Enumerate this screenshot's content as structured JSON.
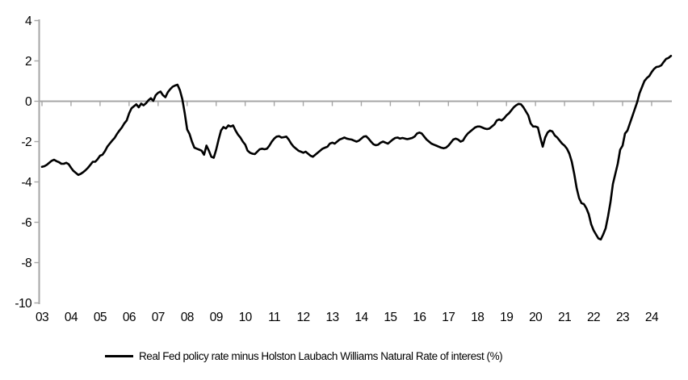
{
  "chart_data": {
    "type": "line",
    "title": "",
    "xlabel": "",
    "ylabel": "",
    "grid": "zero-line-only",
    "legend_position": "bottom",
    "axis_color": "#a6a6a6",
    "text_color": "#000000",
    "y_axis": {
      "ticks": [
        4,
        2,
        0,
        -2,
        -4,
        -6,
        -8,
        -10
      ],
      "range": [
        -10,
        4
      ]
    },
    "x_axis": {
      "tick_years": [
        2003,
        2004,
        2005,
        2006,
        2007,
        2008,
        2009,
        2010,
        2011,
        2012,
        2013,
        2014,
        2015,
        2016,
        2017,
        2018,
        2019,
        2020,
        2021,
        2022,
        2023,
        2024
      ],
      "tick_labels": [
        "03",
        "04",
        "05",
        "06",
        "07",
        "08",
        "09",
        "10",
        "11",
        "12",
        "13",
        "14",
        "15",
        "16",
        "17",
        "18",
        "19",
        "20",
        "21",
        "22",
        "23",
        "24"
      ],
      "range_years": [
        2003.0,
        2024.78
      ]
    },
    "series": [
      {
        "name": "Real Fed policy rate minus Holston Laubach Williams Natural Rate of interest (%)",
        "color": "#000000",
        "start_year": 2003,
        "frequency": "monthly",
        "values": [
          -3.25,
          -3.22,
          -3.15,
          -3.05,
          -2.95,
          -2.9,
          -2.97,
          -3.02,
          -3.1,
          -3.1,
          -3.05,
          -3.12,
          -3.3,
          -3.45,
          -3.55,
          -3.65,
          -3.6,
          -3.52,
          -3.42,
          -3.3,
          -3.15,
          -3.0,
          -3.0,
          -2.87,
          -2.7,
          -2.65,
          -2.48,
          -2.25,
          -2.1,
          -1.95,
          -1.82,
          -1.62,
          -1.45,
          -1.3,
          -1.1,
          -0.95,
          -0.6,
          -0.35,
          -0.25,
          -0.15,
          -0.3,
          -0.12,
          -0.2,
          -0.1,
          0.05,
          0.15,
          0.02,
          0.3,
          0.42,
          0.48,
          0.3,
          0.2,
          0.45,
          0.6,
          0.72,
          0.78,
          0.82,
          0.55,
          0.1,
          -0.6,
          -1.4,
          -1.62,
          -2.0,
          -2.3,
          -2.35,
          -2.4,
          -2.45,
          -2.65,
          -2.2,
          -2.45,
          -2.75,
          -2.8,
          -2.4,
          -1.9,
          -1.45,
          -1.28,
          -1.35,
          -1.2,
          -1.25,
          -1.2,
          -1.45,
          -1.65,
          -1.8,
          -2.0,
          -2.15,
          -2.45,
          -2.55,
          -2.6,
          -2.62,
          -2.5,
          -2.38,
          -2.35,
          -2.38,
          -2.35,
          -2.2,
          -2.0,
          -1.85,
          -1.75,
          -1.73,
          -1.8,
          -1.78,
          -1.75,
          -1.9,
          -2.1,
          -2.25,
          -2.35,
          -2.45,
          -2.5,
          -2.55,
          -2.5,
          -2.6,
          -2.7,
          -2.75,
          -2.65,
          -2.55,
          -2.45,
          -2.35,
          -2.3,
          -2.25,
          -2.1,
          -2.05,
          -2.1,
          -2.0,
          -1.9,
          -1.85,
          -1.8,
          -1.85,
          -1.88,
          -1.9,
          -1.95,
          -2.0,
          -1.95,
          -1.85,
          -1.75,
          -1.73,
          -1.85,
          -2.0,
          -2.13,
          -2.18,
          -2.15,
          -2.05,
          -2.0,
          -2.05,
          -2.1,
          -2.0,
          -1.9,
          -1.82,
          -1.8,
          -1.85,
          -1.82,
          -1.85,
          -1.88,
          -1.85,
          -1.82,
          -1.75,
          -1.6,
          -1.55,
          -1.6,
          -1.75,
          -1.9,
          -2.0,
          -2.1,
          -2.15,
          -2.2,
          -2.25,
          -2.3,
          -2.33,
          -2.3,
          -2.2,
          -2.05,
          -1.9,
          -1.85,
          -1.9,
          -2.0,
          -1.95,
          -1.75,
          -1.6,
          -1.5,
          -1.4,
          -1.3,
          -1.25,
          -1.25,
          -1.3,
          -1.35,
          -1.38,
          -1.35,
          -1.25,
          -1.15,
          -0.95,
          -0.9,
          -0.95,
          -0.85,
          -0.7,
          -0.6,
          -0.45,
          -0.3,
          -0.2,
          -0.13,
          -0.15,
          -0.3,
          -0.5,
          -0.7,
          -1.1,
          -1.25,
          -1.25,
          -1.3,
          -1.8,
          -2.25,
          -1.8,
          -1.55,
          -1.45,
          -1.5,
          -1.7,
          -1.8,
          -1.95,
          -2.1,
          -2.2,
          -2.35,
          -2.6,
          -3.0,
          -3.6,
          -4.3,
          -4.8,
          -5.05,
          -5.1,
          -5.3,
          -5.6,
          -6.1,
          -6.4,
          -6.6,
          -6.8,
          -6.85,
          -6.6,
          -6.3,
          -5.7,
          -5.0,
          -4.1,
          -3.6,
          -3.1,
          -2.4,
          -2.2,
          -1.6,
          -1.45,
          -1.1,
          -0.75,
          -0.4,
          -0.05,
          0.4,
          0.7,
          1.0,
          1.15,
          1.25,
          1.45,
          1.6,
          1.7,
          1.72,
          1.78,
          1.95,
          2.1,
          2.15,
          2.25
        ]
      }
    ]
  },
  "legend": {
    "label": "Real Fed policy rate minus Holston Laubach Williams Natural Rate of interest (%)",
    "swatch_color": "#000000"
  }
}
